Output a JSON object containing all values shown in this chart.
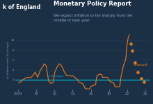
{
  "background_color": "#1b2f45",
  "chart_bg": "#1b2f45",
  "title": "Monetary Policy Report",
  "subtitle": "We expect inflation to fall sharply from the\nmiddle of next year",
  "header_label": "k of England",
  "ylabel": "al inflation rate (% change)",
  "target_value": 2.0,
  "target_label": "2% target",
  "target_color": "#00bcd4",
  "line_color": "#e07820",
  "forecast_color": "#e07820",
  "forecast_label": "Forecast",
  "x_ticks": [
    "2004",
    "07",
    "10",
    "13",
    "16",
    "19",
    "22",
    "25"
  ],
  "x_tick_vals": [
    2004,
    2007,
    2010,
    2013,
    2016,
    2019,
    2022,
    2025
  ],
  "history_years": [
    2004,
    2004.4,
    2004.8,
    2005.2,
    2005.6,
    2006,
    2006.4,
    2006.8,
    2007.2,
    2007.6,
    2008,
    2008.3,
    2008.6,
    2009,
    2009.4,
    2009.8,
    2010,
    2010.4,
    2010.8,
    2011,
    2011.3,
    2011.6,
    2012,
    2012.4,
    2012.8,
    2013,
    2013.4,
    2013.8,
    2014,
    2014.4,
    2014.8,
    2015,
    2015.4,
    2015.8,
    2016,
    2016.4,
    2016.8,
    2017,
    2017.4,
    2017.8,
    2018,
    2018.4,
    2018.8,
    2019,
    2019.4,
    2019.8,
    2020,
    2020.4,
    2020.8,
    2021,
    2021.4,
    2021.8,
    2022,
    2022.2,
    2022.4
  ],
  "history_values": [
    1.3,
    1.6,
    2.0,
    2.3,
    2.5,
    2.3,
    2.8,
    3.5,
    2.4,
    3.8,
    4.5,
    5.2,
    4.8,
    1.8,
    1.2,
    1.5,
    3.3,
    4.5,
    5.2,
    5.0,
    4.5,
    3.6,
    2.8,
    2.8,
    2.7,
    2.8,
    2.4,
    2.0,
    1.5,
    1.3,
    1.0,
    0.3,
    0.1,
    0.1,
    0.6,
    0.8,
    1.0,
    2.7,
    3.1,
    3.0,
    2.4,
    2.5,
    2.4,
    1.8,
    1.5,
    1.3,
    0.6,
    0.5,
    0.6,
    2.5,
    4.8,
    6.2,
    9.0,
    10.5,
    11.1
  ],
  "forecast_years": [
    2022.6,
    2022.9,
    2023.3,
    2023.8,
    2024.3,
    2024.8
  ],
  "forecast_values": [
    9.2,
    7.8,
    5.5,
    3.5,
    2.2,
    1.6
  ],
  "ylim": [
    0,
    12
  ],
  "xlim": [
    2003.5,
    2025.8
  ],
  "grid_color": "#243a52",
  "tick_color": "#7a9ab5",
  "divider_x": 2022.5
}
